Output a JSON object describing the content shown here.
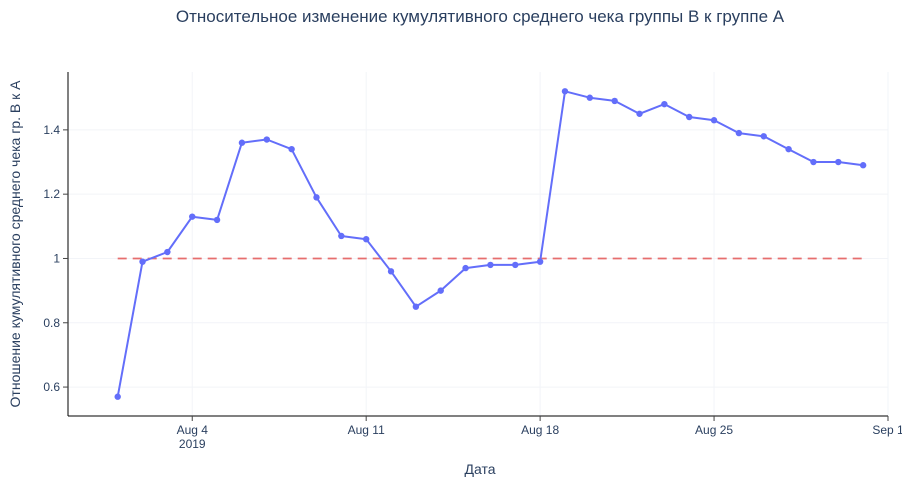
{
  "chart_data": {
    "type": "line",
    "title": "Относительное изменение кумулятивного среднего чека группы B к группе A",
    "xlabel": "Дата",
    "ylabel": "Отношение кумулятивного среднего чека гр. B к A",
    "x_ticks": [
      {
        "date": "2019-08-04",
        "label": "Aug 4",
        "sublabel": "2019"
      },
      {
        "date": "2019-08-11",
        "label": "Aug 11",
        "sublabel": ""
      },
      {
        "date": "2019-08-18",
        "label": "Aug 18",
        "sublabel": ""
      },
      {
        "date": "2019-08-25",
        "label": "Aug 25",
        "sublabel": ""
      },
      {
        "date": "2019-09-01",
        "label": "Sep 1",
        "sublabel": ""
      }
    ],
    "y_ticks": [
      {
        "value": 0.6,
        "label": "0.6"
      },
      {
        "value": 0.8,
        "label": "0.8"
      },
      {
        "value": 1.0,
        "label": "1"
      },
      {
        "value": 1.2,
        "label": "1.2"
      },
      {
        "value": 1.4,
        "label": "1.4"
      }
    ],
    "xlim": [
      "2019-07-30",
      "2019-09-01"
    ],
    "ylim": [
      0.51,
      1.58
    ],
    "grid": true,
    "series": [
      {
        "color": "#636efa",
        "x": [
          "2019-08-01",
          "2019-08-02",
          "2019-08-03",
          "2019-08-04",
          "2019-08-05",
          "2019-08-06",
          "2019-08-07",
          "2019-08-08",
          "2019-08-09",
          "2019-08-10",
          "2019-08-11",
          "2019-08-12",
          "2019-08-13",
          "2019-08-14",
          "2019-08-15",
          "2019-08-16",
          "2019-08-17",
          "2019-08-18",
          "2019-08-19",
          "2019-08-20",
          "2019-08-21",
          "2019-08-22",
          "2019-08-23",
          "2019-08-24",
          "2019-08-25",
          "2019-08-26",
          "2019-08-27",
          "2019-08-28",
          "2019-08-29",
          "2019-08-30",
          "2019-08-31"
        ],
        "y": [
          0.57,
          0.99,
          1.02,
          1.13,
          1.12,
          1.36,
          1.37,
          1.34,
          1.19,
          1.07,
          1.06,
          0.96,
          0.85,
          0.9,
          0.97,
          0.98,
          0.98,
          0.99,
          1.52,
          1.5,
          1.49,
          1.45,
          1.48,
          1.44,
          1.43,
          1.39,
          1.38,
          1.34,
          1.3,
          1.3,
          1.29
        ]
      }
    ],
    "reference_line": {
      "y": 1.0,
      "x": [
        "2019-08-01",
        "2019-08-31"
      ],
      "color": "#e45756",
      "style": "dashed"
    }
  }
}
